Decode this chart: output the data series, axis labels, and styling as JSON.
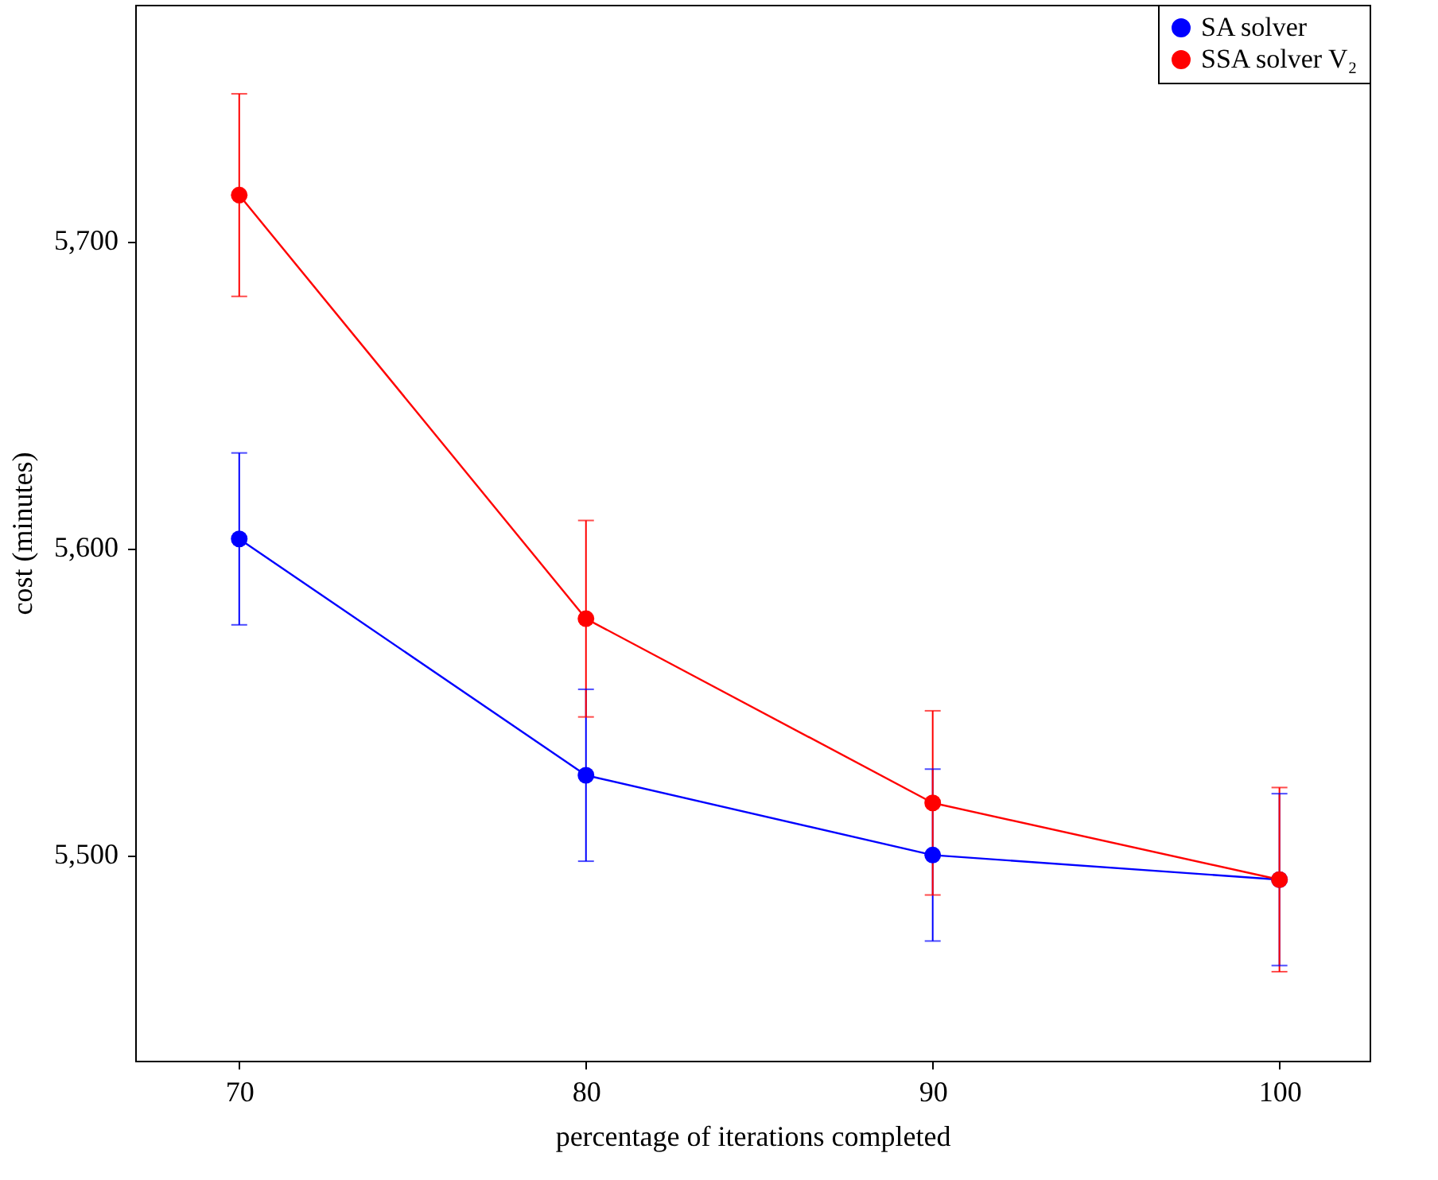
{
  "chart_data": {
    "type": "line",
    "xlabel": "percentage of iterations completed",
    "ylabel": "cost (minutes)",
    "x": [
      70,
      80,
      90,
      100
    ],
    "series": [
      {
        "name": "SA solver",
        "color": "#0000ff",
        "values": [
          5603,
          5526,
          5500,
          5492
        ],
        "errors": [
          28,
          28,
          28,
          28
        ]
      },
      {
        "name": "SSA solver V₂",
        "color": "#ff0000",
        "values": [
          5715,
          5577,
          5517,
          5492
        ],
        "errors": [
          33,
          32,
          30,
          30
        ]
      }
    ],
    "xlim": [
      67,
      102.6
    ],
    "xticks": [
      70,
      80,
      90,
      100
    ],
    "ylim": [
      5433,
      5777
    ],
    "yticks": [
      {
        "value": 5500,
        "label": "5,500"
      },
      {
        "value": 5600,
        "label": "5,600"
      },
      {
        "value": 5700,
        "label": "5,700"
      }
    ],
    "grid": false,
    "legend": "top right",
    "marker": "circle",
    "line_style": "solid"
  }
}
